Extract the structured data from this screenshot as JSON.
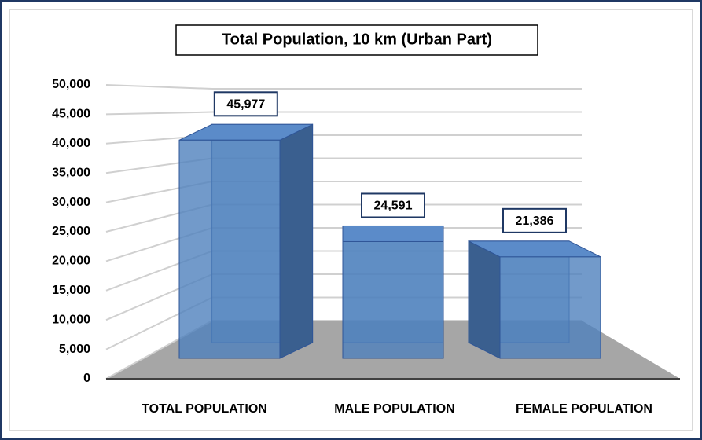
{
  "chart_data": {
    "type": "bar3d",
    "title": "Total Population, 10 km (Urban Part)",
    "categories": [
      "TOTAL POPULATION",
      "MALE POPULATION",
      "FEMALE POPULATION"
    ],
    "values": [
      45977,
      24591,
      21386
    ],
    "value_labels": [
      "45,977",
      "24,591",
      "21,386"
    ],
    "color": "#4f81bd",
    "ylim": [
      0,
      50000
    ],
    "yticks": [
      0,
      {
        "value": 5000,
        "label": "5,000"
      },
      {
        "value": 10000,
        "label": "10,000"
      },
      {
        "value": 15000,
        "label": "15,000"
      },
      {
        "value": 20000,
        "label": "20,000"
      },
      {
        "value": 25000,
        "label": "25,000"
      },
      {
        "value": 30000,
        "label": "30,000"
      },
      {
        "value": 35000,
        "label": "35,000"
      },
      {
        "value": 40000,
        "label": "40,000"
      },
      {
        "value": 45000,
        "label": "45,000"
      },
      {
        "value": 50000,
        "label": "50,000"
      }
    ],
    "grid": true
  }
}
